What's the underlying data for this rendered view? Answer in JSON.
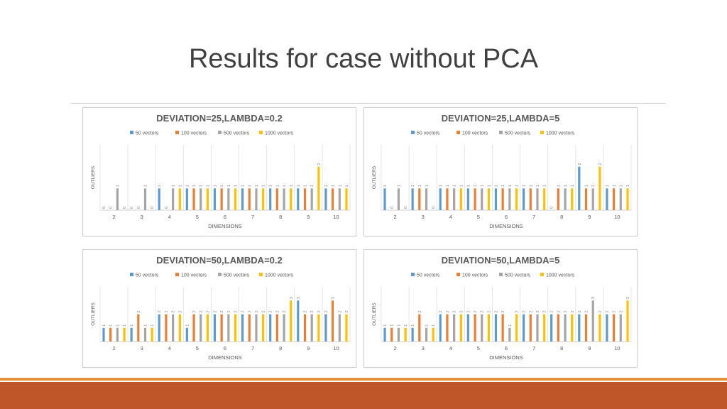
{
  "slide": {
    "title": "Results for case without PCA"
  },
  "colors": {
    "series": [
      "#5b9bd5",
      "#ed7d31",
      "#a5a5a5",
      "#ffc000"
    ],
    "footer_band": "#bf5629",
    "footer_line": "#e39038"
  },
  "chart_data": [
    {
      "type": "bar",
      "title": "DEVIATION=25,LAMBDA=0.2",
      "xlabel": "DIMENSIONS",
      "ylabel": "OUTLIERS",
      "ylim": [
        0,
        3
      ],
      "legend": "top",
      "categories": [
        "2",
        "3",
        "4",
        "5",
        "6",
        "7",
        "8",
        "9",
        "10"
      ],
      "series": [
        {
          "name": "50 vectors",
          "values": [
            0,
            0,
            1,
            1,
            1,
            1,
            1,
            1,
            1
          ]
        },
        {
          "name": "100 vectors",
          "values": [
            0,
            0,
            0,
            1,
            1,
            1,
            1,
            1,
            1
          ]
        },
        {
          "name": "500 vectors",
          "values": [
            1,
            1,
            1,
            1,
            1,
            1,
            1,
            1,
            1
          ]
        },
        {
          "name": "1000 vectors",
          "values": [
            0,
            0,
            1,
            1,
            1,
            1,
            1,
            2,
            1
          ]
        }
      ]
    },
    {
      "type": "bar",
      "title": "DEVIATION=25,LAMBDA=5",
      "xlabel": "DIMENSIONS",
      "ylabel": "OUTLIERS",
      "ylim": [
        0,
        3
      ],
      "legend": "top",
      "categories": [
        "2",
        "3",
        "4",
        "5",
        "6",
        "7",
        "8",
        "9",
        "10"
      ],
      "series": [
        {
          "name": "50 vectors",
          "values": [
            1,
            1,
            1,
            1,
            1,
            1,
            0,
            2,
            1
          ]
        },
        {
          "name": "100 vectors",
          "values": [
            0,
            1,
            1,
            1,
            1,
            1,
            1,
            1,
            1
          ]
        },
        {
          "name": "500 vectors",
          "values": [
            1,
            1,
            1,
            1,
            1,
            1,
            1,
            1,
            1
          ]
        },
        {
          "name": "1000 vectors",
          "values": [
            0,
            0,
            1,
            1,
            1,
            1,
            1,
            2,
            1
          ]
        }
      ]
    },
    {
      "type": "bar",
      "title": "DEVIATION=50,LAMBDA=0.2",
      "xlabel": "DIMENSIONS",
      "ylabel": "OUTLIERS",
      "ylim": [
        0,
        4
      ],
      "legend": "top",
      "categories": [
        "2",
        "3",
        "4",
        "5",
        "6",
        "7",
        "8",
        "9",
        "10"
      ],
      "series": [
        {
          "name": "50 vectors",
          "values": [
            1,
            1,
            2,
            1,
            2,
            2,
            2,
            3,
            2
          ]
        },
        {
          "name": "100 vectors",
          "values": [
            1,
            2,
            2,
            2,
            2,
            2,
            2,
            2,
            3
          ]
        },
        {
          "name": "500 vectors",
          "values": [
            1,
            1,
            2,
            2,
            2,
            2,
            2,
            2,
            2
          ]
        },
        {
          "name": "1000 vectors",
          "values": [
            1,
            1,
            2,
            2,
            2,
            2,
            3,
            2,
            2
          ]
        }
      ]
    },
    {
      "type": "bar",
      "title": "DEVIATION=50,LAMBDA=5",
      "xlabel": "DIMENSIONS",
      "ylabel": "OUTLIERS",
      "ylim": [
        0,
        4
      ],
      "legend": "top",
      "categories": [
        "2",
        "3",
        "4",
        "5",
        "6",
        "7",
        "8",
        "9",
        "10"
      ],
      "series": [
        {
          "name": "50 vectors",
          "values": [
            1,
            1,
            2,
            2,
            2,
            2,
            2,
            2,
            2
          ]
        },
        {
          "name": "100 vectors",
          "values": [
            1,
            2,
            2,
            2,
            2,
            2,
            2,
            2,
            2
          ]
        },
        {
          "name": "500 vectors",
          "values": [
            1,
            1,
            2,
            2,
            1,
            2,
            2,
            3,
            2
          ]
        },
        {
          "name": "1000 vectors",
          "values": [
            1,
            1,
            2,
            2,
            2,
            2,
            2,
            2,
            3
          ]
        }
      ]
    }
  ]
}
